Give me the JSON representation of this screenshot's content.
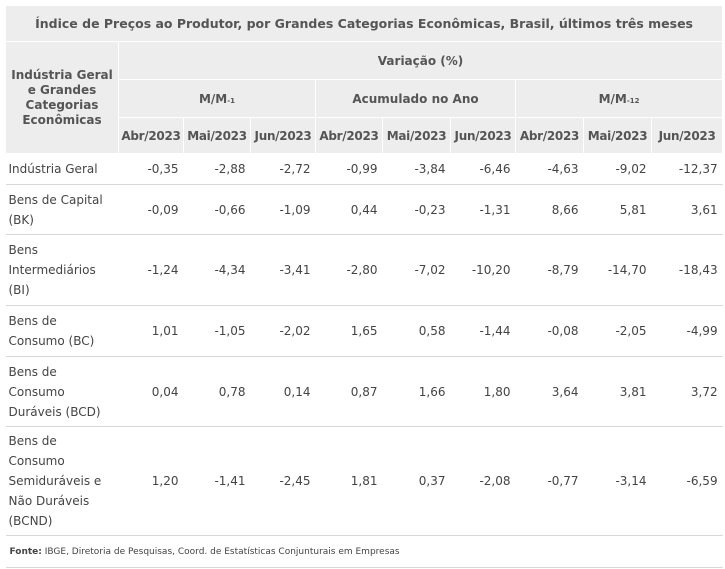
{
  "title": "Índice de Preços ao Produtor, por  Grandes Categorias Econômicas, Brasil, últimos três meses",
  "stub_header": "Indústria Geral e Grandes Categorias Econômicas",
  "variation_header": "Variação (%)",
  "groups": [
    {
      "label": "M/M",
      "sub": "-1"
    },
    {
      "label": "Acumulado no Ano",
      "sub": ""
    },
    {
      "label": "M/M",
      "sub": "-12"
    }
  ],
  "months": [
    "Abr/2023",
    "Mai/2023",
    "Jun/2023",
    "Abr/2023",
    "Mai/2023",
    "Jun/2023",
    "Abr/2023",
    "Mai/2023",
    "Jun/2023"
  ],
  "rows": [
    {
      "label": "Indústria Geral",
      "values": [
        "-0,35",
        "-2,88",
        "-2,72",
        "-0,99",
        "-3,84",
        "-6,46",
        "-4,63",
        "-9,02",
        "-12,37"
      ]
    },
    {
      "label": "Bens de Capital (BK)",
      "values": [
        "-0,09",
        "-0,66",
        "-1,09",
        "0,44",
        "-0,23",
        "-1,31",
        "8,66",
        "5,81",
        "3,61"
      ]
    },
    {
      "label": "Bens Intermediários (BI)",
      "values": [
        "-1,24",
        "-4,34",
        "-3,41",
        "-2,80",
        "-7,02",
        "-10,20",
        "-8,79",
        "-14,70",
        "-18,43"
      ]
    },
    {
      "label": "Bens de Consumo (BC)",
      "values": [
        "1,01",
        "-1,05",
        "-2,02",
        "1,65",
        "0,58",
        "-1,44",
        "-0,08",
        "-2,05",
        "-4,99"
      ]
    },
    {
      "label": "Bens de Consumo Duráveis (BCD)",
      "values": [
        "0,04",
        "0,78",
        "0,14",
        "0,87",
        "1,66",
        "1,80",
        "3,64",
        "3,81",
        "3,72"
      ]
    },
    {
      "label": "Bens de Consumo Semiduráveis e Não Duráveis (BCND)",
      "values": [
        "1,20",
        "-1,41",
        "-2,45",
        "1,81",
        "0,37",
        "-2,08",
        "-0,77",
        "-3,14",
        "-6,59"
      ]
    }
  ],
  "footnote": {
    "label": "Fonte:",
    "text": " IBGE, Diretoria de Pesquisas, Coord. de Estatísticas Conjunturais em Empresas"
  }
}
